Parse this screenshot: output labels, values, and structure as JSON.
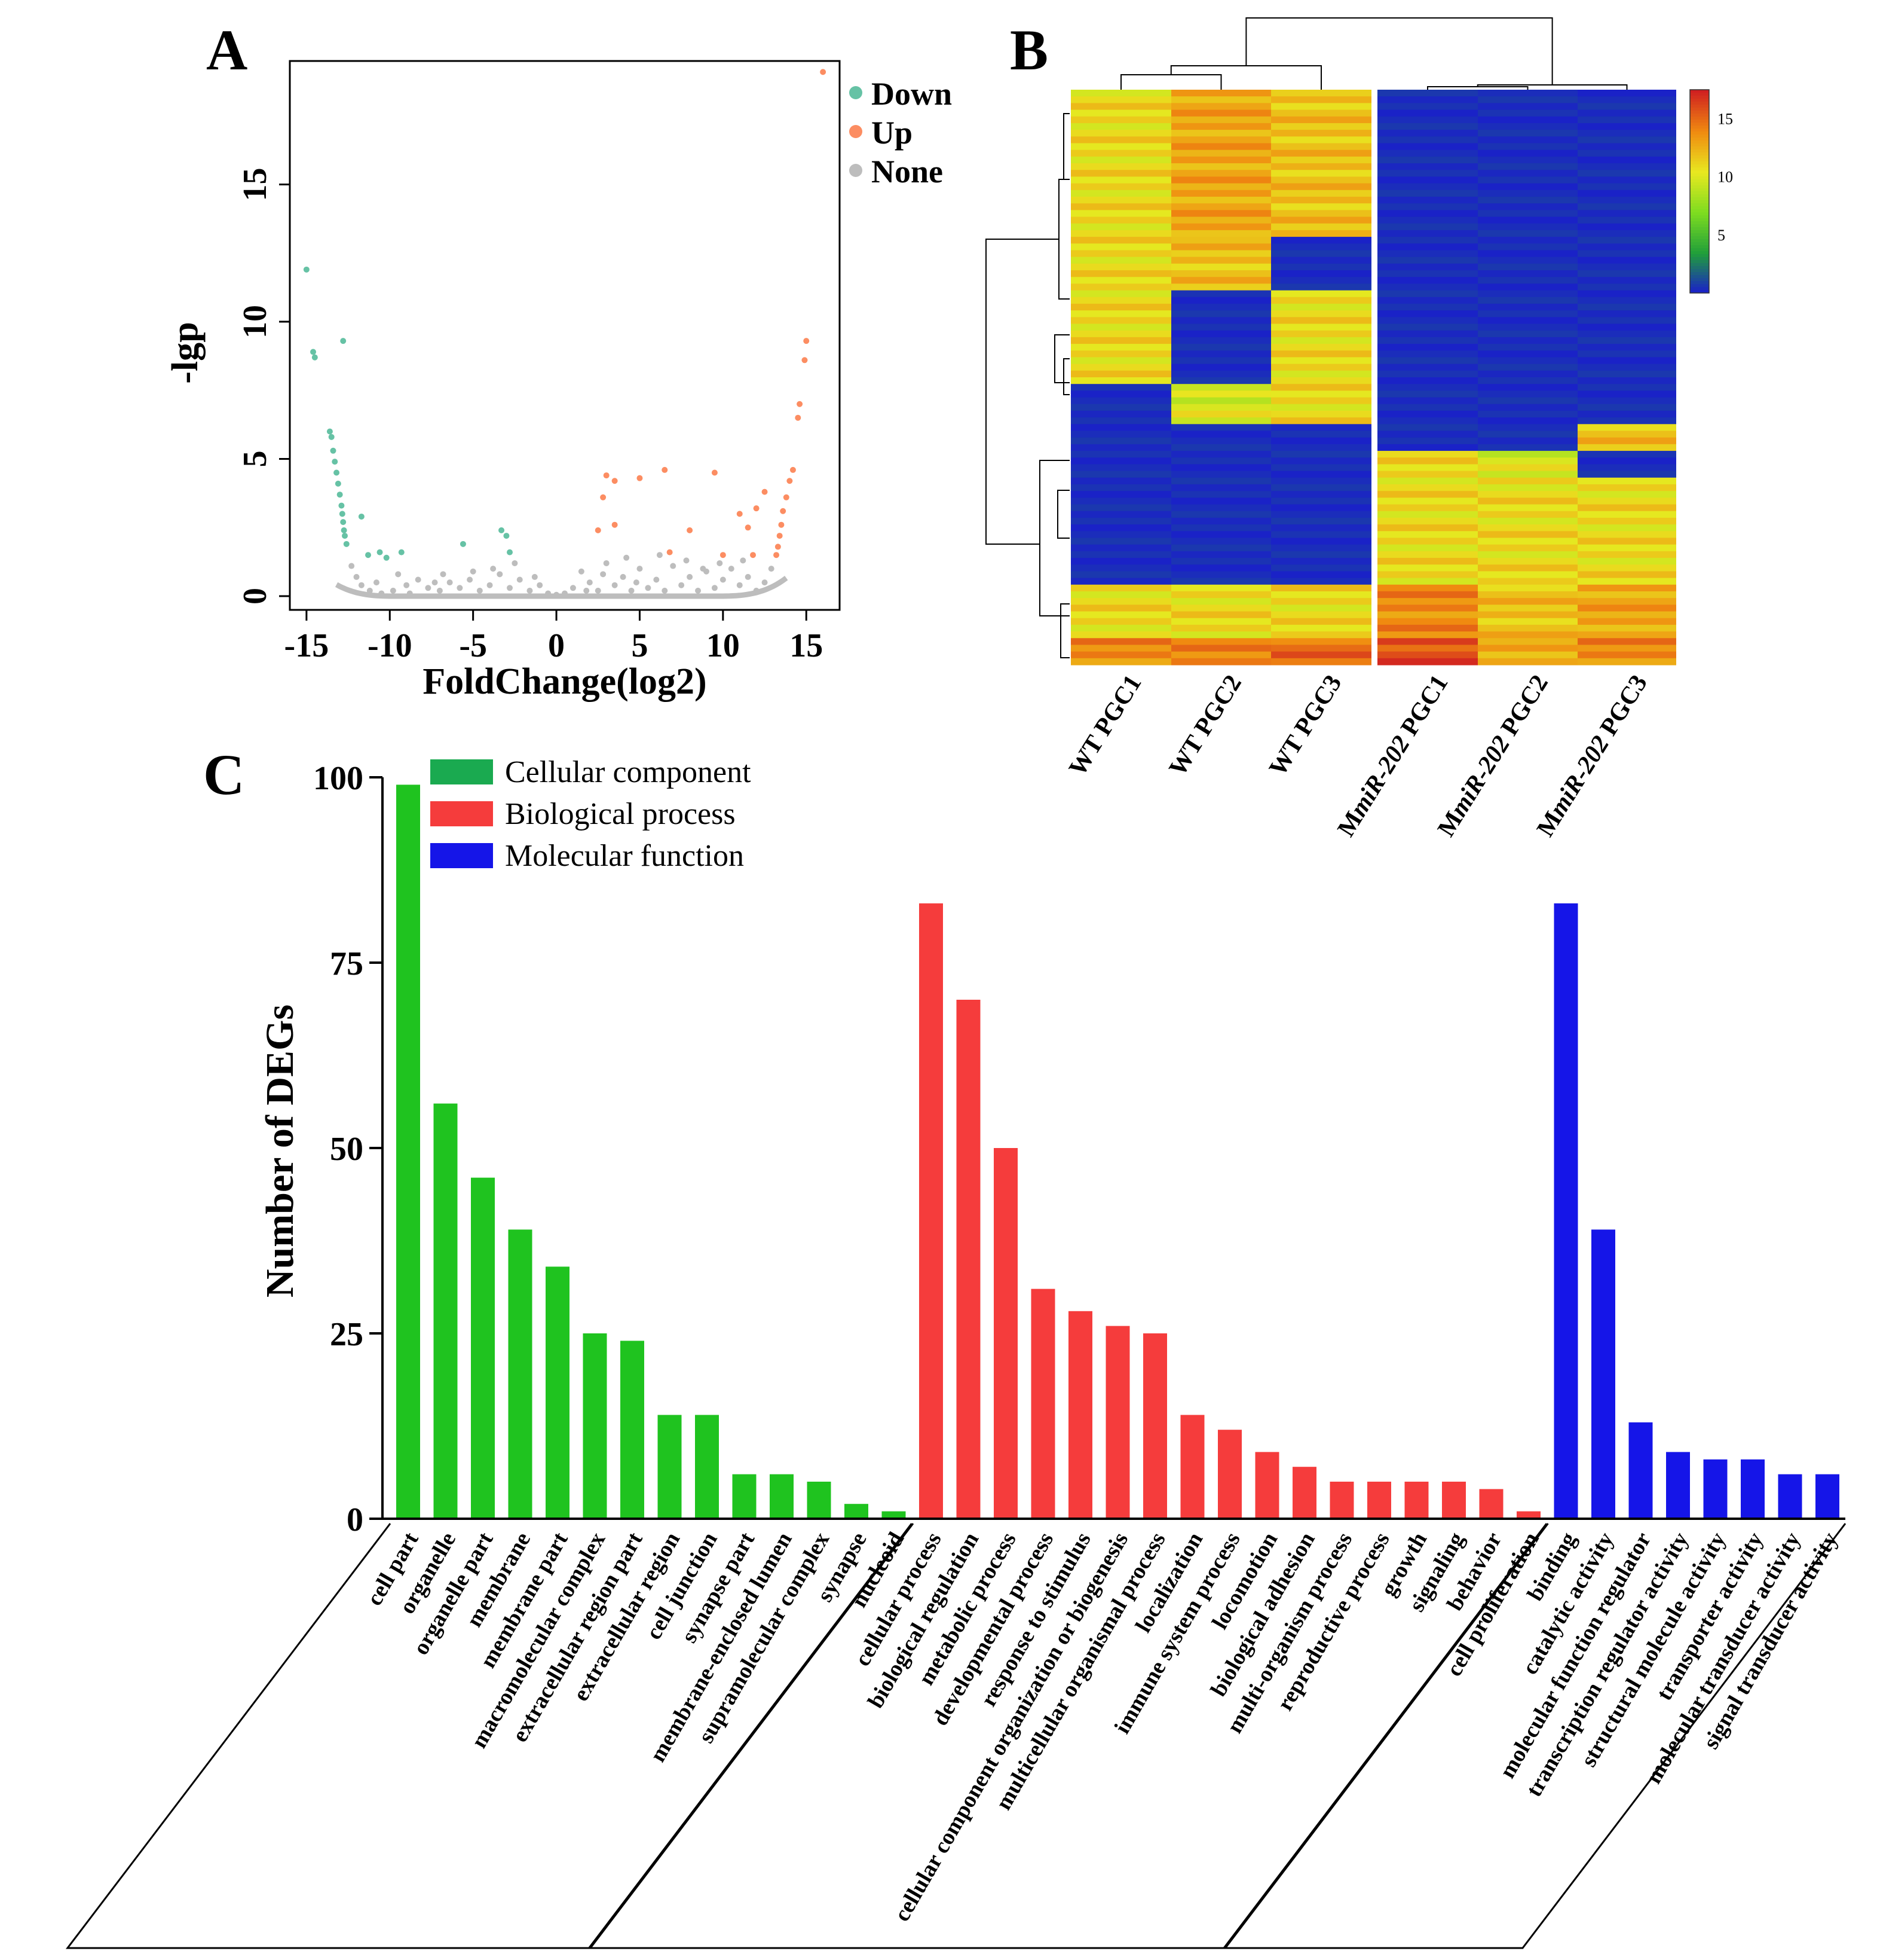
{
  "panels": {
    "a_label": "A",
    "b_label": "B",
    "c_label": "C"
  },
  "chart_data": [
    {
      "type": "scatter",
      "panel": "A",
      "title": "",
      "xlabel": "FoldChange(log2)",
      "ylabel": "-lgp",
      "xlim": [
        -16,
        17
      ],
      "ylim": [
        -0.5,
        19.5
      ],
      "xticks": [
        -15,
        -10,
        -5,
        0,
        5,
        10,
        15
      ],
      "xtick_labels": [
        "-15",
        "-10",
        "-5",
        "0",
        "5",
        "10",
        "15"
      ],
      "yticks": [
        0,
        5,
        10,
        15
      ],
      "ytick_labels": [
        "0",
        "5",
        "10",
        "15"
      ],
      "legend": {
        "placement": "top-right",
        "entries": [
          "Down",
          "Up",
          "None"
        ]
      },
      "colors": {
        "Down": "#66c2a5",
        "Up": "#fc8d62",
        "None": "#bdbdbd"
      },
      "series": [
        {
          "name": "Down",
          "points": [
            [
              -15.0,
              11.9
            ],
            [
              -14.6,
              8.9
            ],
            [
              -14.5,
              8.7
            ],
            [
              -12.8,
              9.3
            ],
            [
              -13.6,
              6.0
            ],
            [
              -13.5,
              5.8
            ],
            [
              -13.4,
              5.3
            ],
            [
              -13.3,
              4.9
            ],
            [
              -13.2,
              4.5
            ],
            [
              -13.1,
              4.1
            ],
            [
              -13.0,
              3.7
            ],
            [
              -12.9,
              3.3
            ],
            [
              -12.85,
              3.0
            ],
            [
              -12.8,
              2.7
            ],
            [
              -12.75,
              2.4
            ],
            [
              -12.7,
              2.2
            ],
            [
              -12.6,
              1.9
            ],
            [
              -11.7,
              2.9
            ],
            [
              -11.3,
              1.5
            ],
            [
              -10.6,
              1.6
            ],
            [
              -10.2,
              1.4
            ],
            [
              -9.3,
              1.6
            ],
            [
              -5.6,
              1.9
            ],
            [
              -3.3,
              2.4
            ],
            [
              -3.0,
              2.2
            ],
            [
              -2.8,
              1.6
            ]
          ]
        },
        {
          "name": "Up",
          "points": [
            [
              16.0,
              19.1
            ],
            [
              15.0,
              9.3
            ],
            [
              14.9,
              8.6
            ],
            [
              14.6,
              7.0
            ],
            [
              14.5,
              6.5
            ],
            [
              14.2,
              4.6
            ],
            [
              14.0,
              4.2
            ],
            [
              13.8,
              3.6
            ],
            [
              13.6,
              3.1
            ],
            [
              13.5,
              2.6
            ],
            [
              13.4,
              2.2
            ],
            [
              13.3,
              1.8
            ],
            [
              13.2,
              1.5
            ],
            [
              3.0,
              4.4
            ],
            [
              3.5,
              4.2
            ],
            [
              2.8,
              3.6
            ],
            [
              3.5,
              2.6
            ],
            [
              5.0,
              4.3
            ],
            [
              6.5,
              4.6
            ],
            [
              9.5,
              4.5
            ],
            [
              8.0,
              2.4
            ],
            [
              11.5,
              2.5
            ],
            [
              12.0,
              3.2
            ],
            [
              12.5,
              3.8
            ],
            [
              11.0,
              3.0
            ],
            [
              10.0,
              1.5
            ],
            [
              2.5,
              2.4
            ],
            [
              6.8,
              1.6
            ],
            [
              11.8,
              1.5
            ]
          ]
        },
        {
          "name": "None",
          "points": [
            [
              -12.3,
              1.1
            ],
            [
              -12.0,
              0.7
            ],
            [
              -11.7,
              0.4
            ],
            [
              -11.2,
              0.2
            ],
            [
              -10.5,
              0.1
            ],
            [
              -9.8,
              0.2
            ],
            [
              -9.0,
              0.4
            ],
            [
              -8.3,
              0.6
            ],
            [
              -7.7,
              0.3
            ],
            [
              -7.0,
              0.2
            ],
            [
              -6.4,
              0.5
            ],
            [
              -5.8,
              0.3
            ],
            [
              -5.2,
              0.6
            ],
            [
              -4.6,
              0.2
            ],
            [
              -4.0,
              0.4
            ],
            [
              -3.4,
              0.8
            ],
            [
              -2.8,
              0.3
            ],
            [
              -2.2,
              0.6
            ],
            [
              -1.6,
              0.2
            ],
            [
              -1.0,
              0.4
            ],
            [
              -0.5,
              0.1
            ],
            [
              0.5,
              0.1
            ],
            [
              1.0,
              0.3
            ],
            [
              1.5,
              0.9
            ],
            [
              2.0,
              0.5
            ],
            [
              2.5,
              0.2
            ],
            [
              3.0,
              1.2
            ],
            [
              3.5,
              0.4
            ],
            [
              4.0,
              0.7
            ],
            [
              4.5,
              0.2
            ],
            [
              5.0,
              1.0
            ],
            [
              5.5,
              0.3
            ],
            [
              6.0,
              0.6
            ],
            [
              6.5,
              0.2
            ],
            [
              7.0,
              1.1
            ],
            [
              7.5,
              0.4
            ],
            [
              8.0,
              0.7
            ],
            [
              8.5,
              0.2
            ],
            [
              9.0,
              0.9
            ],
            [
              9.5,
              0.3
            ],
            [
              10.0,
              0.6
            ],
            [
              10.5,
              1.0
            ],
            [
              11.0,
              0.4
            ],
            [
              11.5,
              0.7
            ],
            [
              12.0,
              0.2
            ],
            [
              12.5,
              0.5
            ],
            [
              12.9,
              1.0
            ],
            [
              -10.8,
              0.5
            ],
            [
              -9.5,
              0.8
            ],
            [
              -8.8,
              0.1
            ],
            [
              -6.8,
              0.8
            ],
            [
              -3.8,
              1.0
            ],
            [
              -1.3,
              0.7
            ],
            [
              1.8,
              0.2
            ],
            [
              2.8,
              0.8
            ],
            [
              4.2,
              1.4
            ],
            [
              7.8,
              1.3
            ],
            [
              9.8,
              1.2
            ],
            [
              11.2,
              1.3
            ],
            [
              -5.0,
              0.9
            ],
            [
              0.0,
              0.05
            ],
            [
              -2.5,
              1.2
            ],
            [
              6.2,
              1.5
            ],
            [
              8.8,
              1.0
            ],
            [
              4.8,
              0.5
            ],
            [
              -7.3,
              0.5
            ]
          ]
        }
      ]
    },
    {
      "type": "heatmap",
      "panel": "B",
      "title": "",
      "columns": [
        "WT PGC1",
        "WT PGC2",
        "WT PGC3",
        "MmiR-202 PGC1",
        "MmiR-202 PGC2",
        "MmiR-202 PGC3"
      ],
      "column_label_parts": [
        {
          "prefix": "WT PGC1",
          "italic": "",
          "suffix": ""
        },
        {
          "prefix": "WT PGC2",
          "italic": "",
          "suffix": ""
        },
        {
          "prefix": "WT PGC3",
          "italic": "",
          "suffix": ""
        },
        {
          "prefix": "M",
          "italic": "miR-202",
          "suffix": " PGC1"
        },
        {
          "prefix": "M",
          "italic": "miR-202",
          "suffix": " PGC2"
        },
        {
          "prefix": "M",
          "italic": "miR-202",
          "suffix": " PGC3"
        }
      ],
      "colorbar": {
        "ticks": [
          5,
          10,
          15
        ],
        "tick_labels": [
          "5",
          "10",
          "15"
        ],
        "range": [
          0,
          17.5
        ],
        "colors": [
          "#1a1ad0",
          "#1f9e3a",
          "#7ddc20",
          "#e8e820",
          "#f08a10",
          "#d02020"
        ]
      },
      "row_blocks": [
        {
          "rows": 22,
          "values": [
            11,
            13,
            12,
            0.5,
            0.5,
            0.5
          ]
        },
        {
          "rows": 8,
          "values": [
            11,
            12,
            0.5,
            0.5,
            0.5,
            0.5
          ]
        },
        {
          "rows": 14,
          "values": [
            11,
            0.5,
            11,
            0.5,
            0.5,
            0.5
          ]
        },
        {
          "rows": 6,
          "values": [
            0.5,
            10,
            11,
            0.5,
            0.5,
            0.5
          ]
        },
        {
          "rows": 4,
          "values": [
            0.5,
            0.5,
            0.5,
            0.5,
            0.5,
            12
          ]
        },
        {
          "rows": 4,
          "values": [
            0.5,
            0.5,
            0.5,
            11,
            10,
            0.5
          ]
        },
        {
          "rows": 16,
          "values": [
            0.5,
            0.5,
            0.5,
            11,
            11,
            11
          ]
        },
        {
          "rows": 8,
          "values": [
            11,
            11,
            11,
            14,
            12,
            13
          ]
        },
        {
          "rows": 4,
          "values": [
            14,
            14,
            15,
            16,
            13,
            14
          ]
        }
      ]
    },
    {
      "type": "bar",
      "panel": "C",
      "title": "",
      "xlabel": "",
      "ylabel": "Number of DEGs",
      "ylim": [
        0,
        100
      ],
      "yticks": [
        0,
        25,
        50,
        75,
        100
      ],
      "ytick_labels": [
        "0",
        "25",
        "50",
        "75",
        "100"
      ],
      "legend": {
        "placement": "top-left",
        "entries": [
          "Cellular component",
          "Biological process",
          "Molecular function"
        ]
      },
      "colors": {
        "Cellular component": "#1fc31f",
        "Biological process": "#f53c3c",
        "Molecular function": "#1515e8",
        "legend_cc": "#1aaa50"
      },
      "groups": [
        {
          "name": "Cellular component",
          "categories": [
            "cell part",
            "organelle",
            "organelle part",
            "membrane",
            "membrane part",
            "macromolecular complex",
            "extracellular region part",
            "extracellular region",
            "cell junction",
            "synapse part",
            "membrane-enclosed lumen",
            "supramolecular complex",
            "synapse",
            "nucleoid"
          ],
          "values": [
            99,
            56,
            46,
            39,
            34,
            25,
            24,
            14,
            14,
            6,
            6,
            5,
            2,
            1
          ]
        },
        {
          "name": "Biological process",
          "categories": [
            "cellular process",
            "biological regulation",
            "metabolic process",
            "developmental process",
            "response to stimulus",
            "cellular component organization or biogenesis",
            "multicellular organismal process",
            "localization",
            "immune system process",
            "locomotion",
            "biological adhesion",
            "multi-organism process",
            "reproductive process",
            "growth",
            "signaling",
            "behavior",
            "cell proliferation"
          ],
          "values": [
            83,
            70,
            50,
            31,
            28,
            26,
            25,
            14,
            12,
            9,
            7,
            5,
            5,
            5,
            5,
            4,
            1
          ]
        },
        {
          "name": "Molecular function",
          "categories": [
            "binding",
            "catalytic activity",
            "molecular function regulator",
            "transcription regulator activity",
            "structural molecule activity",
            "transporter activity",
            "molecular transducer activity",
            "signal transducer activity"
          ],
          "values": [
            83,
            39,
            13,
            9,
            8,
            8,
            6,
            6
          ]
        }
      ]
    }
  ]
}
